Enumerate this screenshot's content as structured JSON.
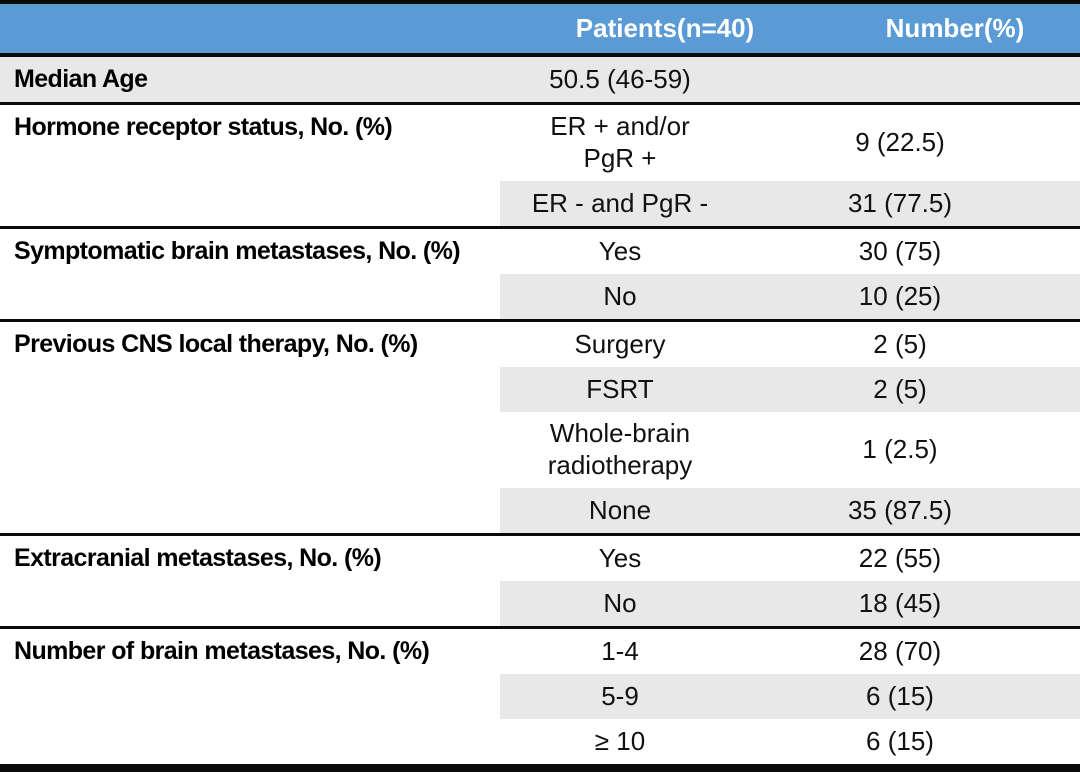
{
  "colors": {
    "header_bg": "#5B9BD5",
    "header_text": "#FFFFFF",
    "row_shade": "#E9E8E8",
    "border": "#0A0A0A"
  },
  "table": {
    "header": {
      "patients": "Patients(n=40)",
      "number": "Number(%)"
    },
    "groups": [
      {
        "label": "Median Age",
        "full_shade": true,
        "subrows": [
          {
            "patients": "50.5 (46-59)",
            "number": "",
            "shaded": true
          }
        ]
      },
      {
        "label": "Hormone receptor status, No. (%)",
        "subrows": [
          {
            "patients": "ER + and/or\nPgR +",
            "number": "9 (22.5)",
            "tall": true
          },
          {
            "patients": "ER - and PgR -",
            "number": "31 (77.5)",
            "shaded": true
          }
        ]
      },
      {
        "label": "Symptomatic brain metastases, No. (%)",
        "subrows": [
          {
            "patients": "Yes",
            "number": "30 (75)"
          },
          {
            "patients": "No",
            "number": "10 (25)",
            "shaded": true
          }
        ]
      },
      {
        "label": "Previous CNS local therapy, No. (%)",
        "subrows": [
          {
            "patients": "Surgery",
            "number": "2 (5)"
          },
          {
            "patients": "FSRT",
            "number": "2 (5)",
            "shaded": true
          },
          {
            "patients": "Whole-brain\nradiotherapy",
            "number": "1 (2.5)",
            "tall": true
          },
          {
            "patients": "None",
            "number": "35 (87.5)",
            "shaded": true
          }
        ]
      },
      {
        "label": "Extracranial metastases, No. (%)",
        "subrows": [
          {
            "patients": "Yes",
            "number": "22 (55)"
          },
          {
            "patients": "No",
            "number": "18 (45)",
            "shaded": true
          }
        ]
      },
      {
        "label": "Number of brain metastases, No. (%)",
        "subrows": [
          {
            "patients": "1-4",
            "number": "28 (70)"
          },
          {
            "patients": "5-9",
            "number": "6 (15)",
            "shaded": true
          },
          {
            "patients": "≥ 10",
            "number": "6 (15)"
          }
        ]
      }
    ]
  }
}
